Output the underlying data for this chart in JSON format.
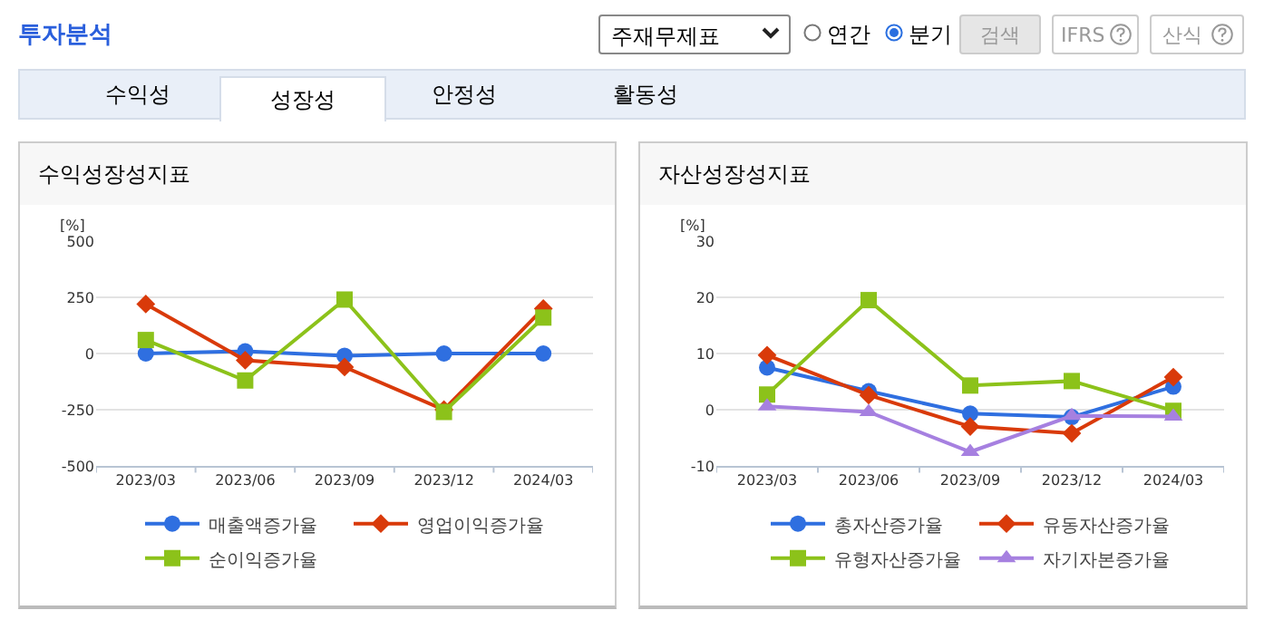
{
  "chart_data": [
    {
      "type": "other",
      "title": "투자분석",
      "annotations": [
        "주재무제표",
        "연간",
        "분기",
        "검색",
        "IFRS",
        "산식",
        "수익성",
        "성장성",
        "안정성",
        "활동성"
      ]
    },
    {
      "type": "line",
      "title": "수익성장성지표",
      "ylabel": "[%]",
      "categories": [
        "2023/03",
        "2023/06",
        "2023/09",
        "2023/12",
        "2024/03"
      ],
      "ylim": [
        -500,
        500
      ],
      "yticks": [
        -500,
        -250,
        0,
        250,
        500
      ],
      "grid": "y",
      "legend": "bottom",
      "line_style": "solid",
      "series": [
        {
          "name": "매출액증가율",
          "color": "#2f6fe0",
          "marker": "circle",
          "values": [
            0,
            10,
            -10,
            0,
            0
          ]
        },
        {
          "name": "영업이익증가율",
          "color": "#d93a0a",
          "marker": "diamond",
          "values": [
            220,
            -30,
            -60,
            -250,
            200
          ]
        },
        {
          "name": "순이익증가율",
          "color": "#8cc21a",
          "marker": "square",
          "values": [
            60,
            -120,
            240,
            -260,
            160
          ]
        }
      ]
    },
    {
      "type": "line",
      "title": "자산성장성지표",
      "ylabel": "[%]",
      "categories": [
        "2023/03",
        "2023/06",
        "2023/09",
        "2023/12",
        "2024/03"
      ],
      "ylim": [
        -10,
        30
      ],
      "yticks": [
        -10,
        0,
        10,
        20,
        30
      ],
      "grid": "y",
      "legend": "bottom",
      "line_style": "solid",
      "series": [
        {
          "name": "총자산증가율",
          "color": "#2f6fe0",
          "marker": "circle",
          "values": [
            7.5,
            3.3,
            -0.7,
            -1.3,
            4.1
          ]
        },
        {
          "name": "유동자산증가율",
          "color": "#d93a0a",
          "marker": "diamond",
          "values": [
            9.7,
            2.6,
            -3.0,
            -4.2,
            5.8
          ]
        },
        {
          "name": "유형자산증가율",
          "color": "#8cc21a",
          "marker": "square",
          "values": [
            2.7,
            19.5,
            4.3,
            5.1,
            -0.2
          ]
        },
        {
          "name": "자기자본증가율",
          "color": "#a680e0",
          "marker": "triangle",
          "values": [
            0.6,
            -0.4,
            -7.5,
            -1.1,
            -1.2
          ]
        }
      ]
    }
  ]
}
